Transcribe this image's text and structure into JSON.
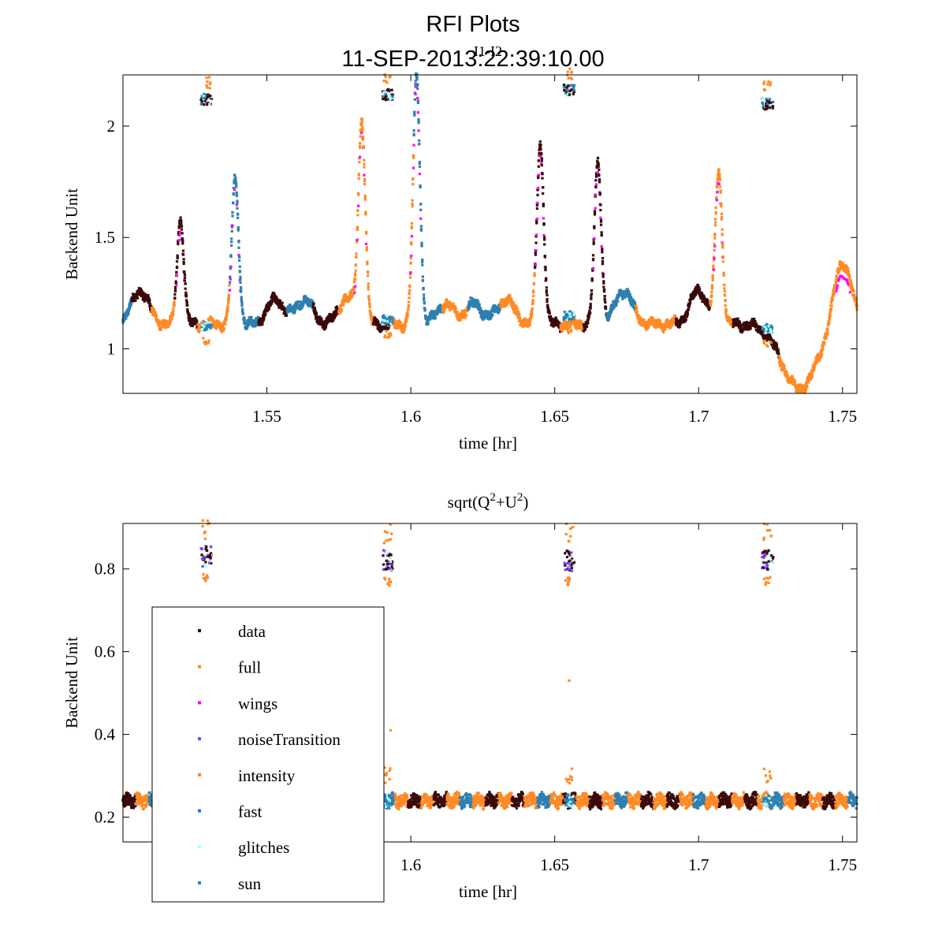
{
  "figure": {
    "title": "RFI Plots",
    "subtitle": "11-SEP-2013:22:39:10.00",
    "overlap_label": "I1-I2"
  },
  "colors": {
    "data": "#3a0a0a",
    "full": "#ff8a26",
    "wings": "#ff00ff",
    "noiseTransition": "#7f3fff",
    "intensity": "#ff7f1f",
    "fast": "#1f6fff",
    "glitches": "#aaffff",
    "sun": "#2f7fb0"
  },
  "chart_data": [
    {
      "type": "scatter",
      "title": "I1-I2",
      "xlabel": "time [hr]",
      "ylabel": "Backend Unit",
      "xlim": [
        1.5,
        1.755
      ],
      "ylim": [
        0.8,
        2.23
      ],
      "xticks": [
        1.55,
        1.6,
        1.65,
        1.7,
        1.75
      ],
      "xtick_labels": [
        "1.55",
        "1.6",
        "1.65",
        "1.7",
        "1.75"
      ],
      "yticks": [
        1,
        1.5,
        2
      ],
      "ytick_labels": [
        "1",
        "1.5",
        "2"
      ],
      "baseline": 1.11,
      "peaks": [
        {
          "x": 1.506,
          "y": 1.26
        },
        {
          "x": 1.52,
          "y": 1.58
        },
        {
          "x": 1.539,
          "y": 1.76
        },
        {
          "x": 1.553,
          "y": 1.22
        },
        {
          "x": 1.563,
          "y": 1.22
        },
        {
          "x": 1.578,
          "y": 1.23
        },
        {
          "x": 1.583,
          "y": 2.0
        },
        {
          "x": 1.602,
          "y": 2.23
        },
        {
          "x": 1.612,
          "y": 1.2
        },
        {
          "x": 1.622,
          "y": 1.2
        },
        {
          "x": 1.633,
          "y": 1.22
        },
        {
          "x": 1.645,
          "y": 1.92
        },
        {
          "x": 1.665,
          "y": 1.84
        },
        {
          "x": 1.674,
          "y": 1.26
        },
        {
          "x": 1.7,
          "y": 1.26
        },
        {
          "x": 1.707,
          "y": 1.79
        },
        {
          "x": 1.735,
          "y": 0.82
        },
        {
          "x": 1.75,
          "y": 1.4
        }
      ],
      "calibration_clusters": [
        {
          "x": 1.529,
          "y": 2.12,
          "low_y": 1.1
        },
        {
          "x": 1.592,
          "y": 2.14,
          "low_y": 1.13
        },
        {
          "x": 1.655,
          "y": 2.16,
          "low_y": 1.15
        },
        {
          "x": 1.724,
          "y": 2.1,
          "low_y": 1.09
        }
      ]
    },
    {
      "type": "scatter",
      "title_parts": [
        "sqrt(Q",
        "2",
        "+U",
        "2",
        ")"
      ],
      "xlabel": "time [hr]",
      "ylabel": "Backend Unit",
      "xlim": [
        1.5,
        1.755
      ],
      "ylim": [
        0.14,
        0.91
      ],
      "xticks": [
        1.6,
        1.65,
        1.7,
        1.75
      ],
      "xtick_labels": [
        "1.6",
        "1.65",
        "1.7",
        "1.75"
      ],
      "yticks": [
        0.2,
        0.4,
        0.6,
        0.8
      ],
      "ytick_labels": [
        "0.2",
        "0.4",
        "0.6",
        "0.8"
      ],
      "baseline": 0.24,
      "calibration_clusters": [
        {
          "x": 1.529,
          "y": 0.83,
          "low_y": 0.24
        },
        {
          "x": 1.592,
          "y": 0.82,
          "low_y": 0.24
        },
        {
          "x": 1.655,
          "y": 0.82,
          "low_y": 0.24
        },
        {
          "x": 1.724,
          "y": 0.82,
          "low_y": 0.24
        }
      ],
      "outliers": [
        {
          "x": 1.655,
          "y": 0.53
        },
        {
          "x": 1.593,
          "y": 0.41
        }
      ],
      "legend": {
        "location": "lower-left",
        "entries": [
          "data",
          "full",
          "wings",
          "noiseTransition",
          "intensity",
          "fast",
          "glitches",
          "sun"
        ]
      }
    }
  ]
}
